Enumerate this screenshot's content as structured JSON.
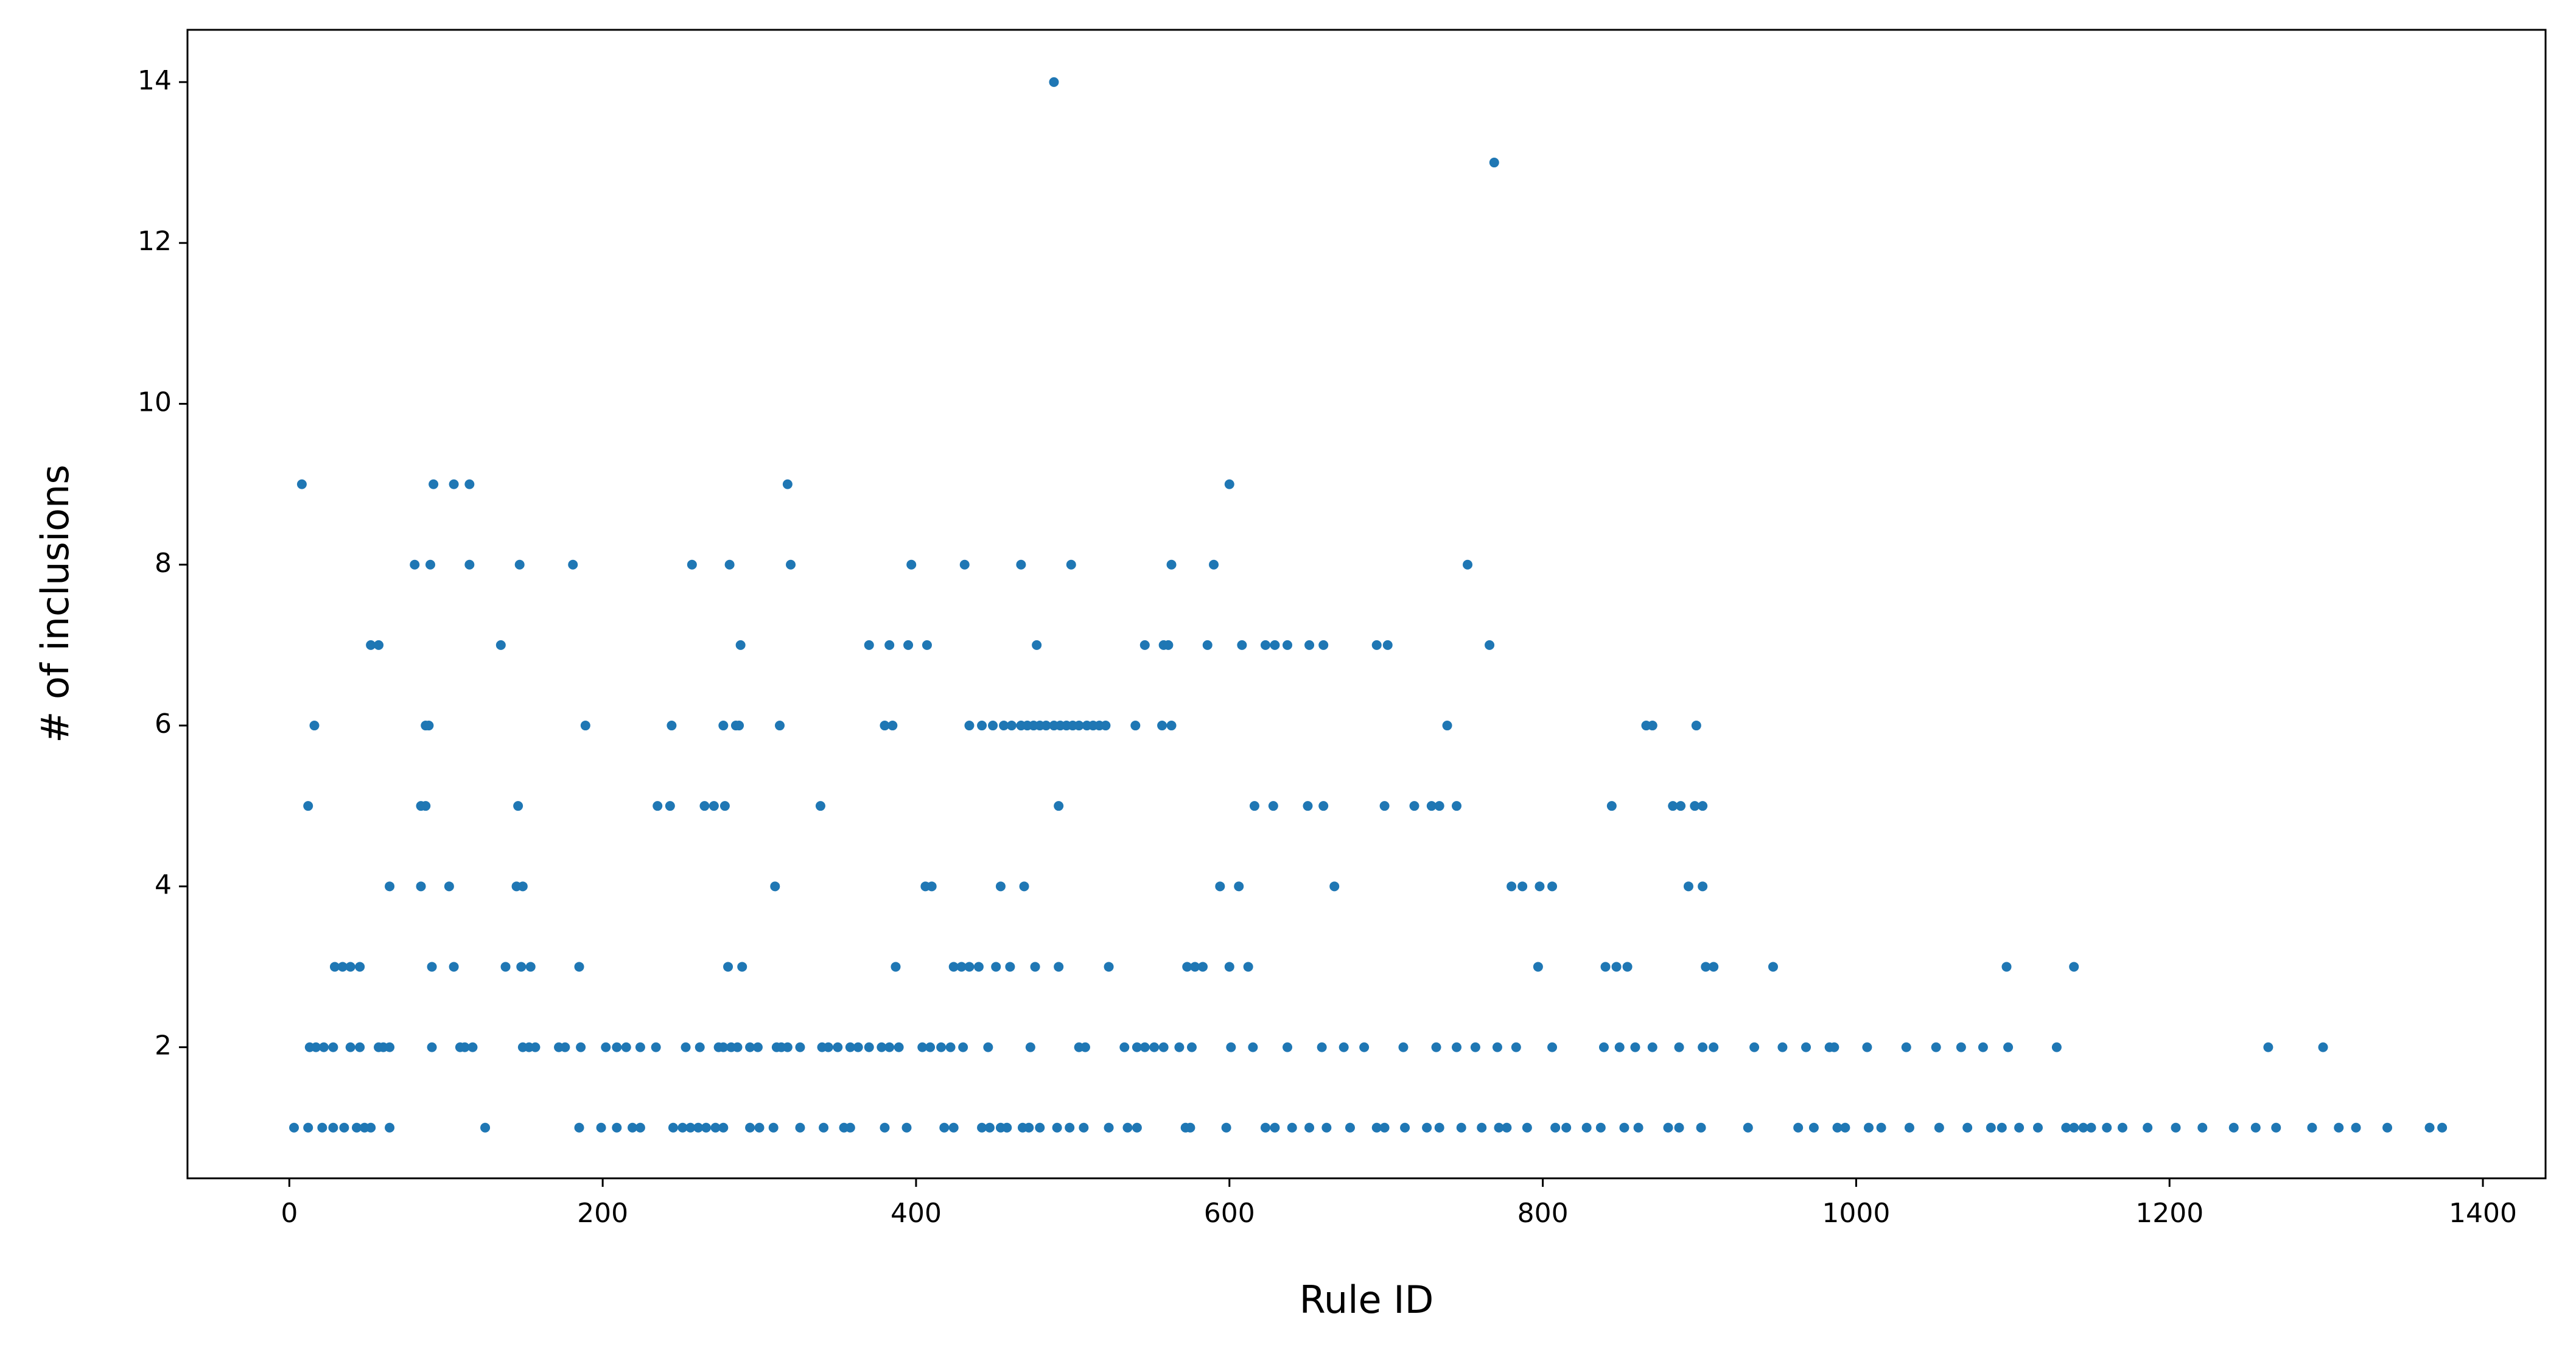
{
  "chart_data": {
    "type": "scatter",
    "xlabel": "Rule ID",
    "ylabel": "# of inclusions",
    "color": "#1f77b4",
    "xlim": [
      -65,
      1440
    ],
    "ylim": [
      0.37,
      14.65
    ],
    "xticks": [
      0,
      200,
      400,
      600,
      800,
      1000,
      1200,
      1400
    ],
    "yticks": [
      2,
      4,
      6,
      8,
      10,
      12,
      14
    ],
    "x": [
      488,
      769,
      8,
      92,
      105,
      115,
      318,
      600,
      80,
      90,
      115,
      147,
      181,
      257,
      281,
      320,
      397,
      431,
      467,
      499,
      563,
      590,
      752,
      52,
      57,
      135,
      288,
      370,
      383,
      395,
      407,
      477,
      546,
      558,
      561,
      586,
      608,
      623,
      629,
      637,
      651,
      660,
      694,
      701,
      766,
      16,
      87,
      89,
      189,
      244,
      277,
      285,
      287,
      313,
      380,
      385,
      434,
      442,
      449,
      456,
      461,
      467,
      471,
      475,
      479,
      483,
      488,
      492,
      496,
      500,
      504,
      509,
      513,
      517,
      521,
      540,
      557,
      563,
      739,
      866,
      870,
      898,
      12,
      84,
      87,
      146,
      235,
      243,
      265,
      271,
      278,
      339,
      491,
      616,
      628,
      650,
      660,
      699,
      718,
      729,
      734,
      745,
      844,
      883,
      888,
      897,
      902,
      64,
      84,
      102,
      145,
      149,
      310,
      406,
      410,
      454,
      469,
      594,
      606,
      667,
      780,
      787,
      798,
      806,
      893,
      902,
      29,
      34,
      39,
      45,
      91,
      105,
      138,
      148,
      154,
      185,
      280,
      289,
      387,
      424,
      429,
      434,
      440,
      451,
      460,
      476,
      491,
      523,
      573,
      578,
      583,
      600,
      612,
      797,
      840,
      847,
      854,
      904,
      909,
      947,
      1096,
      1139,
      13,
      17,
      22,
      28,
      39,
      45,
      57,
      60,
      64,
      91,
      109,
      112,
      117,
      149,
      153,
      157,
      172,
      176,
      186,
      202,
      209,
      215,
      224,
      234,
      253,
      262,
      274,
      277,
      282,
      286,
      294,
      299,
      311,
      314,
      318,
      326,
      340,
      344,
      350,
      358,
      363,
      370,
      378,
      383,
      389,
      404,
      409,
      416,
      422,
      430,
      446,
      473,
      504,
      508,
      533,
      541,
      546,
      552,
      558,
      568,
      576,
      601,
      615,
      637,
      659,
      673,
      686,
      711,
      732,
      745,
      757,
      771,
      783,
      806,
      839,
      849,
      859,
      870,
      887,
      902,
      909,
      935,
      953,
      968,
      983,
      986,
      1007,
      1032,
      1051,
      1067,
      1081,
      1097,
      1128,
      1263,
      1298,
      3,
      12,
      21,
      28,
      35,
      43,
      48,
      52,
      64,
      125,
      185,
      199,
      209,
      219,
      224,
      245,
      251,
      256,
      261,
      266,
      272,
      277,
      294,
      300,
      309,
      326,
      341,
      354,
      358,
      380,
      394,
      418,
      424,
      442,
      447,
      454,
      458,
      468,
      472,
      479,
      490,
      498,
      507,
      523,
      535,
      541,
      572,
      575,
      598,
      623,
      629,
      640,
      651,
      662,
      677,
      694,
      699,
      712,
      726,
      734,
      748,
      761,
      772,
      777,
      790,
      808,
      815,
      828,
      837,
      852,
      861,
      880,
      887,
      901,
      931,
      963,
      973,
      988,
      993,
      1008,
      1016,
      1034,
      1053,
      1071,
      1086,
      1093,
      1104,
      1116,
      1134,
      1139,
      1145,
      1150,
      1160,
      1170,
      1186,
      1204,
      1221,
      1241,
      1255,
      1268,
      1291,
      1308,
      1319,
      1339,
      1366,
      1374
    ],
    "values": [
      14,
      13,
      9,
      9,
      9,
      9,
      9,
      9,
      8,
      8,
      8,
      8,
      8,
      8,
      8,
      8,
      8,
      8,
      8,
      8,
      8,
      8,
      8,
      7,
      7,
      7,
      7,
      7,
      7,
      7,
      7,
      7,
      7,
      7,
      7,
      7,
      7,
      7,
      7,
      7,
      7,
      7,
      7,
      7,
      7,
      6,
      6,
      6,
      6,
      6,
      6,
      6,
      6,
      6,
      6,
      6,
      6,
      6,
      6,
      6,
      6,
      6,
      6,
      6,
      6,
      6,
      6,
      6,
      6,
      6,
      6,
      6,
      6,
      6,
      6,
      6,
      6,
      6,
      6,
      6,
      6,
      6,
      5,
      5,
      5,
      5,
      5,
      5,
      5,
      5,
      5,
      5,
      5,
      5,
      5,
      5,
      5,
      5,
      5,
      5,
      5,
      5,
      5,
      5,
      5,
      5,
      5,
      4,
      4,
      4,
      4,
      4,
      4,
      4,
      4,
      4,
      4,
      4,
      4,
      4,
      4,
      4,
      4,
      4,
      4,
      4,
      3,
      3,
      3,
      3,
      3,
      3,
      3,
      3,
      3,
      3,
      3,
      3,
      3,
      3,
      3,
      3,
      3,
      3,
      3,
      3,
      3,
      3,
      3,
      3,
      3,
      3,
      3,
      3,
      3,
      3,
      3,
      3,
      3,
      3,
      3,
      3,
      2,
      2,
      2,
      2,
      2,
      2,
      2,
      2,
      2,
      2,
      2,
      2,
      2,
      2,
      2,
      2,
      2,
      2,
      2,
      2,
      2,
      2,
      2,
      2,
      2,
      2,
      2,
      2,
      2,
      2,
      2,
      2,
      2,
      2,
      2,
      2,
      2,
      2,
      2,
      2,
      2,
      2,
      2,
      2,
      2,
      2,
      2,
      2,
      2,
      2,
      2,
      2,
      2,
      2,
      2,
      2,
      2,
      2,
      2,
      2,
      2,
      2,
      2,
      2,
      2,
      2,
      2,
      2,
      2,
      2,
      2,
      2,
      2,
      2,
      2,
      2,
      2,
      2,
      2,
      2,
      2,
      2,
      2,
      2,
      2,
      2,
      2,
      2,
      2,
      2,
      2,
      2,
      2,
      2,
      2,
      1,
      1,
      1,
      1,
      1,
      1,
      1,
      1,
      1,
      1,
      1,
      1,
      1,
      1,
      1,
      1,
      1,
      1,
      1,
      1,
      1,
      1,
      1,
      1,
      1,
      1,
      1,
      1,
      1,
      1,
      1,
      1,
      1,
      1,
      1,
      1,
      1,
      1,
      1,
      1,
      1,
      1,
      1,
      1,
      1,
      1,
      1,
      1,
      1,
      1,
      1,
      1,
      1,
      1,
      1,
      1,
      1,
      1,
      1,
      1,
      1,
      1,
      1,
      1,
      1,
      1,
      1,
      1,
      1,
      1,
      1,
      1,
      1,
      1,
      1,
      1,
      1,
      1,
      1,
      1,
      1,
      1,
      1,
      1,
      1,
      1,
      1,
      1,
      1,
      1,
      1,
      1,
      1,
      1,
      1,
      1,
      1,
      1,
      1,
      1,
      1,
      1,
      1,
      1,
      1,
      1
    ]
  }
}
